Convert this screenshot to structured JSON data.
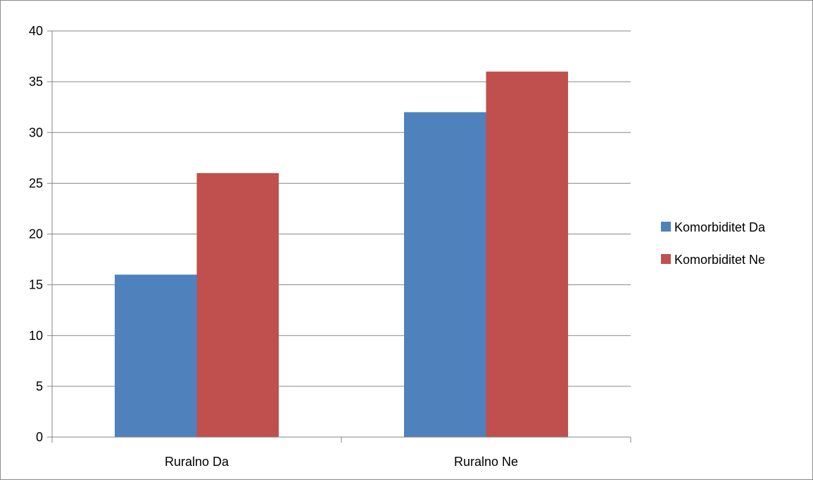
{
  "chart_data": {
    "type": "bar",
    "categories": [
      "Ruralno Da",
      "Ruralno Ne"
    ],
    "series": [
      {
        "name": "Komorbiditet Da",
        "values": [
          16,
          32
        ],
        "color": "#4f81bd"
      },
      {
        "name": "Komorbiditet Ne",
        "values": [
          26,
          36
        ],
        "color": "#c0504d"
      }
    ],
    "title": "",
    "xlabel": "",
    "ylabel": "",
    "ylim": [
      0,
      40
    ],
    "yticks": [
      "0",
      "5",
      "10",
      "15",
      "20",
      "25",
      "30",
      "35",
      "40"
    ],
    "grid": true,
    "legend_position": "right"
  }
}
